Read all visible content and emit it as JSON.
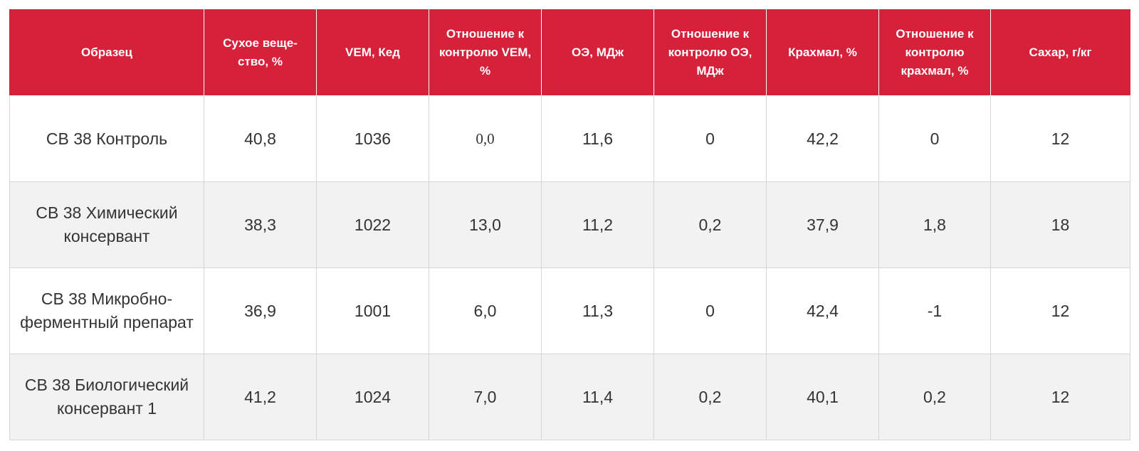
{
  "table": {
    "header_bg": "#d6213b",
    "columns": [
      "Образец",
      "Сухое веще-ство, %",
      "VEM, Кед",
      "Отношение к контролю VEM, %",
      "ОЭ, МДж",
      "Отношение к контролю ОЭ, МДж",
      "Крахмал, %",
      "Отношение к контролю крахмал, %",
      "Сахар, г/кг"
    ],
    "rows": [
      [
        "СВ 38 Контроль",
        "40,8",
        "1036",
        "0,0",
        "11,6",
        "0",
        "42,2",
        "0",
        "12"
      ],
      [
        "СВ 38 Химический консервант",
        "38,3",
        "1022",
        "13,0",
        "11,2",
        "0,2",
        "37,9",
        "1,8",
        "18"
      ],
      [
        "СВ 38 Микробно-ферментный препарат",
        "36,9",
        "1001",
        "6,0",
        "11,3",
        "0",
        "42,4",
        "-1",
        "12"
      ],
      [
        "СВ 38 Биологический консервант 1",
        "41,2",
        "1024",
        "7,0",
        "11,4",
        "0,2",
        "40,1",
        "0,2",
        "12"
      ]
    ]
  }
}
